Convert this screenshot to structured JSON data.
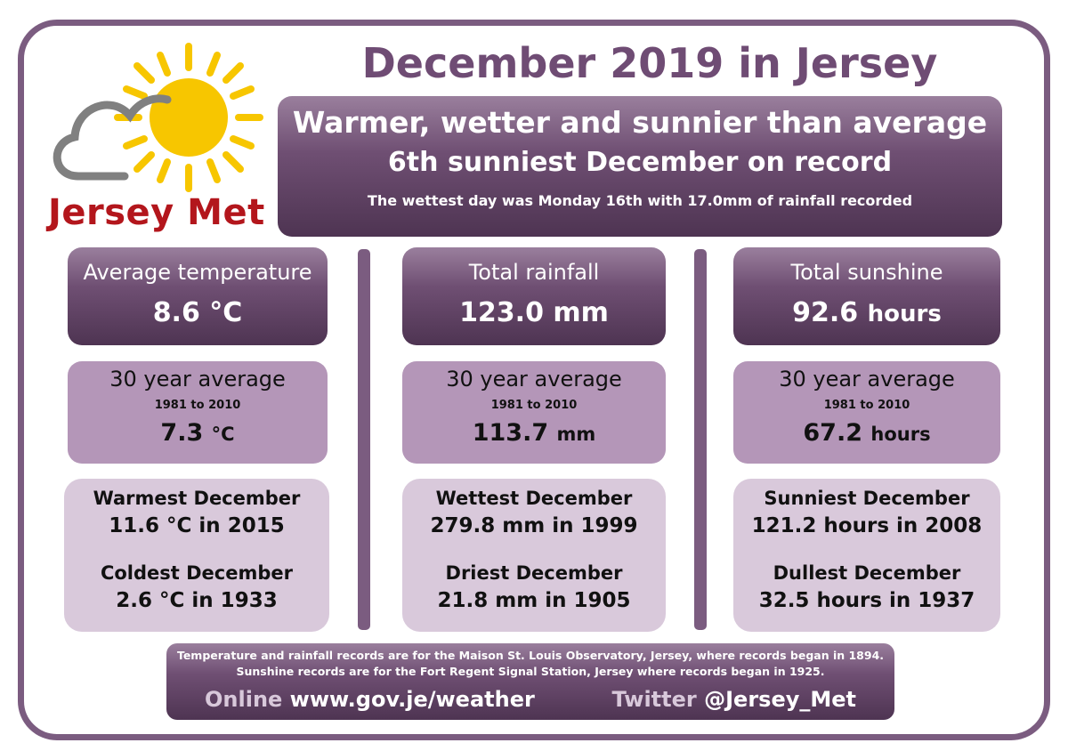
{
  "logo": {
    "text": "Jersey Met",
    "sun_color": "#f7c600",
    "cloud_color": "#808080",
    "text_color": "#b3161c"
  },
  "title": "December 2019 in Jersey",
  "banner": {
    "line1": "Warmer, wetter and sunnier than average",
    "line2": "6th sunniest December on record",
    "line3": "The wettest day was Monday 16th with 17.0mm of rainfall recorded"
  },
  "columns": [
    {
      "stat_label": "Average temperature",
      "stat_value": "8.6 °C",
      "stat_unit": "",
      "avg_label": "30 year average",
      "avg_range": "1981 to 2010",
      "avg_value": "7.3",
      "avg_unit": "°C",
      "rec1_label": "Warmest December",
      "rec1_value": "11.6 °C in 2015",
      "rec2_label": "Coldest December",
      "rec2_value": "2.6 °C in 1933"
    },
    {
      "stat_label": "Total rainfall",
      "stat_value": "123.0 mm",
      "stat_unit": "",
      "avg_label": "30 year average",
      "avg_range": "1981 to 2010",
      "avg_value": "113.7",
      "avg_unit": "mm",
      "rec1_label": "Wettest December",
      "rec1_value": "279.8 mm in 1999",
      "rec2_label": "Driest December",
      "rec2_value": "21.8 mm in 1905"
    },
    {
      "stat_label": "Total sunshine",
      "stat_value": "92.6",
      "stat_unit": "hours",
      "avg_label": "30 year average",
      "avg_range": "1981 to 2010",
      "avg_value": "67.2",
      "avg_unit": "hours",
      "rec1_label": "Sunniest December",
      "rec1_value": "121.2 hours in 2008",
      "rec2_label": "Dullest December",
      "rec2_value": "32.5 hours in 1937"
    }
  ],
  "footer": {
    "note1": "Temperature and rainfall records are for the Maison St. Louis Observatory, Jersey, where records began in 1894.",
    "note2": "Sunshine records are for the Fort Regent Signal Station, Jersey where records began in 1925.",
    "online_label": "Online",
    "online_value": "www.gov.je/weather",
    "twitter_label": "Twitter",
    "twitter_value": "@Jersey_Met"
  },
  "colors": {
    "frame": "#7b5c80",
    "title": "#6f4c74",
    "dark_panel": "#5e4262",
    "mid_panel": "#b496b8",
    "light_panel": "#d9c9db"
  }
}
